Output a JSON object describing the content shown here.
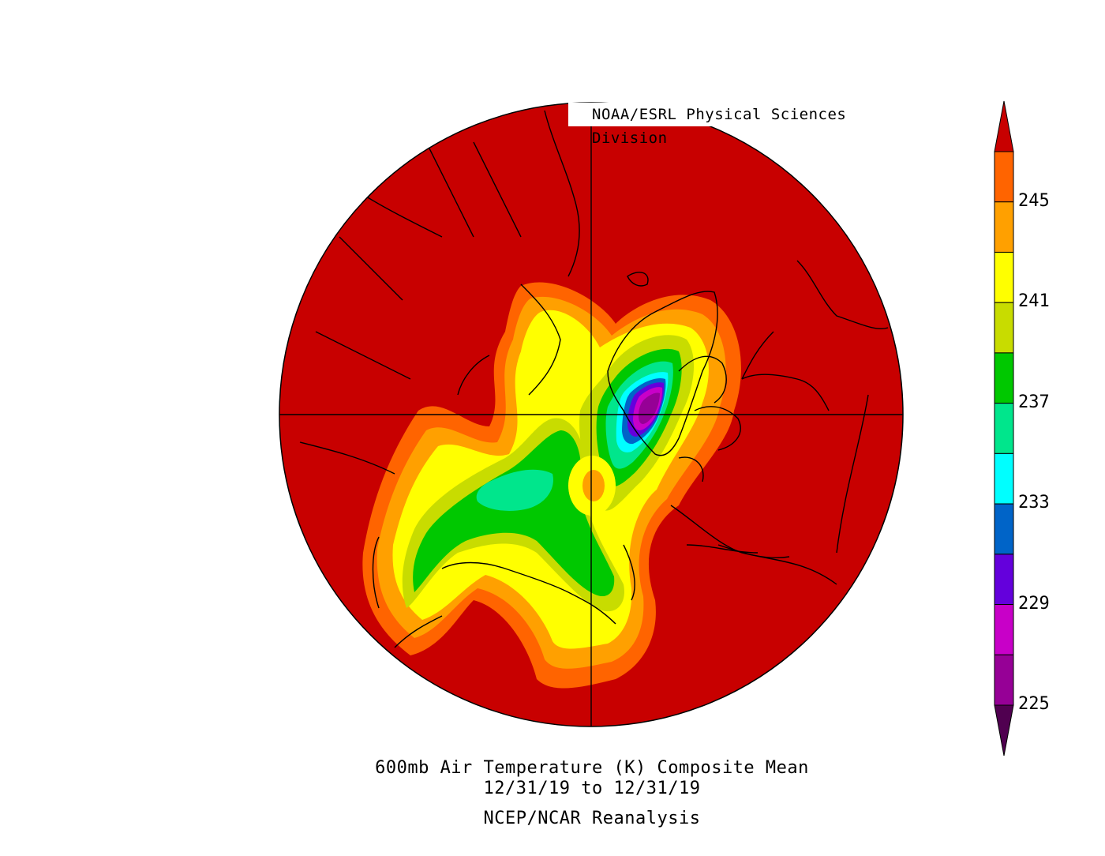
{
  "credit": "NOAA/ESRL Physical Sciences Division",
  "title_line1": "600mb Air Temperature (K) Composite Mean",
  "title_line2": "12/31/19  to 12/31/19",
  "title_line3": "NCEP/NCAR Reanalysis",
  "colorbar": {
    "labels": [
      "245",
      "241",
      "237",
      "233",
      "229",
      "225"
    ],
    "colors": [
      "#c80000",
      "#ff6400",
      "#ffa000",
      "#ffff00",
      "#c8dc00",
      "#00c800",
      "#00e68c",
      "#00ffff",
      "#0064c8",
      "#6400dc",
      "#c800c8",
      "#960096",
      "#500050"
    ],
    "min_value": 225,
    "max_value": 247,
    "interval": 2
  },
  "map": {
    "projection": "north-polar-stereographic",
    "background_color": "#c80000",
    "coastline_color": "#000000"
  }
}
